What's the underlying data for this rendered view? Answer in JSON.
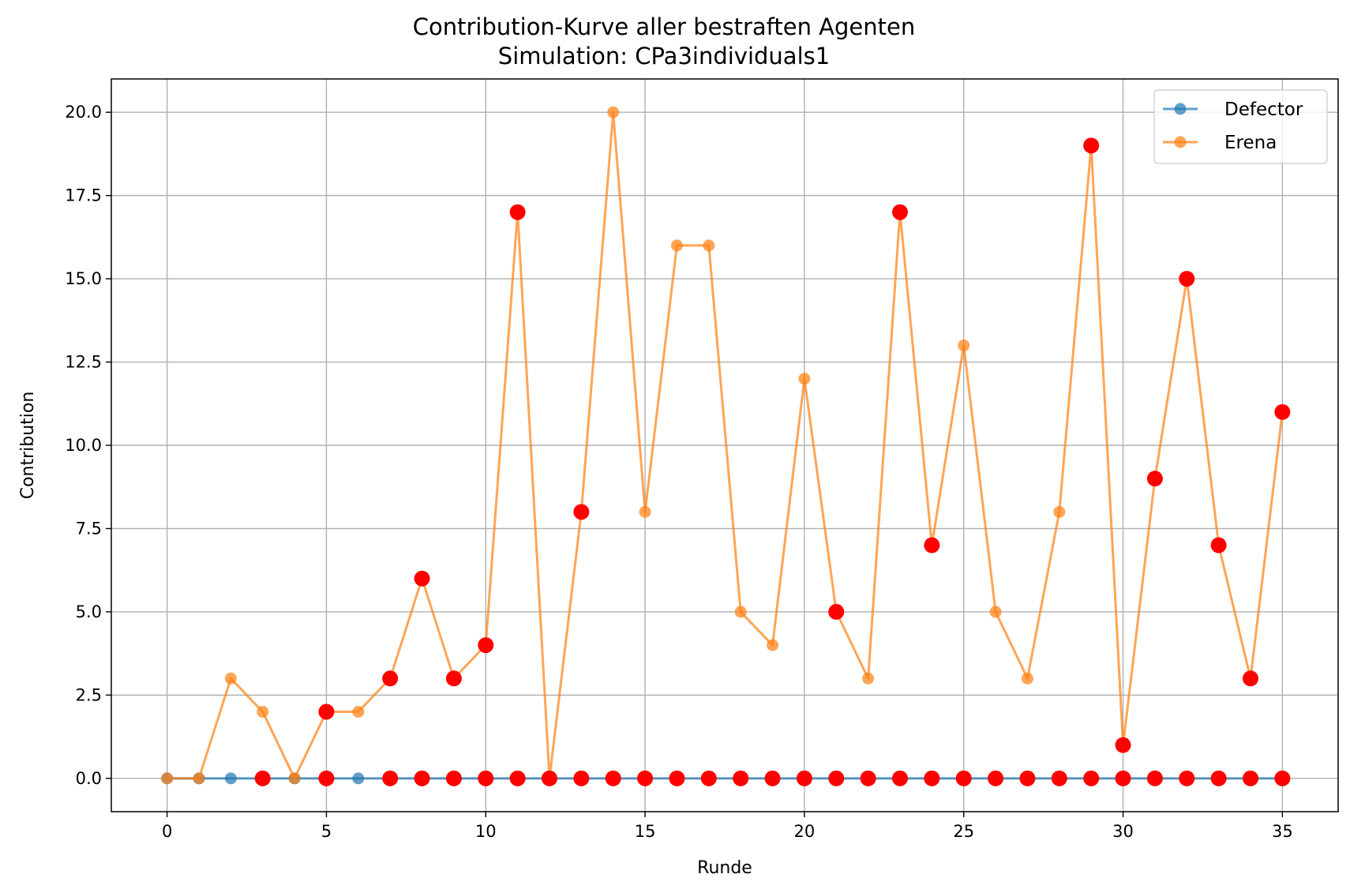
{
  "chart_data": {
    "type": "line",
    "title": "Contribution-Kurve aller bestraften Agenten",
    "subtitle": "Simulation: CPa3individuals1",
    "xlabel": "Runde",
    "ylabel": "Contribution",
    "xlim": [
      -1.75,
      36.75
    ],
    "ylim": [
      -1.0,
      21.0
    ],
    "xticks": [
      0,
      5,
      10,
      15,
      20,
      25,
      30,
      35
    ],
    "yticks": [
      0.0,
      2.5,
      5.0,
      7.5,
      10.0,
      12.5,
      15.0,
      17.5,
      20.0
    ],
    "ytick_labels": [
      "0.0",
      "2.5",
      "5.0",
      "7.5",
      "10.0",
      "12.5",
      "15.0",
      "17.5",
      "20.0"
    ],
    "grid": true,
    "legend_position": "top-right",
    "x": [
      0,
      1,
      2,
      3,
      4,
      5,
      6,
      7,
      8,
      9,
      10,
      11,
      12,
      13,
      14,
      15,
      16,
      17,
      18,
      19,
      20,
      21,
      22,
      23,
      24,
      25,
      26,
      27,
      28,
      29,
      30,
      31,
      32,
      33,
      34,
      35
    ],
    "series": [
      {
        "name": "Defector",
        "color": "#1f77b4",
        "values": [
          0,
          0,
          0,
          0,
          0,
          0,
          0,
          0,
          0,
          0,
          0,
          0,
          0,
          0,
          0,
          0,
          0,
          0,
          0,
          0,
          0,
          0,
          0,
          0,
          0,
          0,
          0,
          0,
          0,
          0,
          0,
          0,
          0,
          0,
          0,
          0
        ]
      },
      {
        "name": "Erena",
        "color": "#ff7f0e",
        "values": [
          0,
          0,
          3,
          2,
          0,
          2,
          2,
          3,
          6,
          3,
          4,
          17,
          0,
          8,
          20,
          8,
          16,
          16,
          5,
          4,
          12,
          5,
          3,
          17,
          7,
          13,
          5,
          3,
          8,
          19,
          1,
          9,
          15,
          7,
          3,
          11
        ]
      }
    ],
    "punished_markers": {
      "color": "#ff0000",
      "points": [
        [
          3,
          0
        ],
        [
          5,
          0
        ],
        [
          7,
          0
        ],
        [
          8,
          0
        ],
        [
          9,
          0
        ],
        [
          10,
          0
        ],
        [
          11,
          0
        ],
        [
          12,
          0
        ],
        [
          13,
          0
        ],
        [
          14,
          0
        ],
        [
          15,
          0
        ],
        [
          16,
          0
        ],
        [
          17,
          0
        ],
        [
          18,
          0
        ],
        [
          19,
          0
        ],
        [
          20,
          0
        ],
        [
          21,
          0
        ],
        [
          22,
          0
        ],
        [
          23,
          0
        ],
        [
          24,
          0
        ],
        [
          25,
          0
        ],
        [
          26,
          0
        ],
        [
          27,
          0
        ],
        [
          28,
          0
        ],
        [
          29,
          0
        ],
        [
          30,
          0
        ],
        [
          31,
          0
        ],
        [
          32,
          0
        ],
        [
          33,
          0
        ],
        [
          34,
          0
        ],
        [
          35,
          0
        ],
        [
          5,
          2
        ],
        [
          7,
          3
        ],
        [
          8,
          6
        ],
        [
          9,
          3
        ],
        [
          10,
          4
        ],
        [
          11,
          17
        ],
        [
          13,
          8
        ],
        [
          21,
          5
        ],
        [
          23,
          17
        ],
        [
          24,
          7
        ],
        [
          29,
          19
        ],
        [
          30,
          1
        ],
        [
          31,
          9
        ],
        [
          32,
          15
        ],
        [
          33,
          7
        ],
        [
          34,
          3
        ],
        [
          35,
          11
        ]
      ]
    }
  }
}
